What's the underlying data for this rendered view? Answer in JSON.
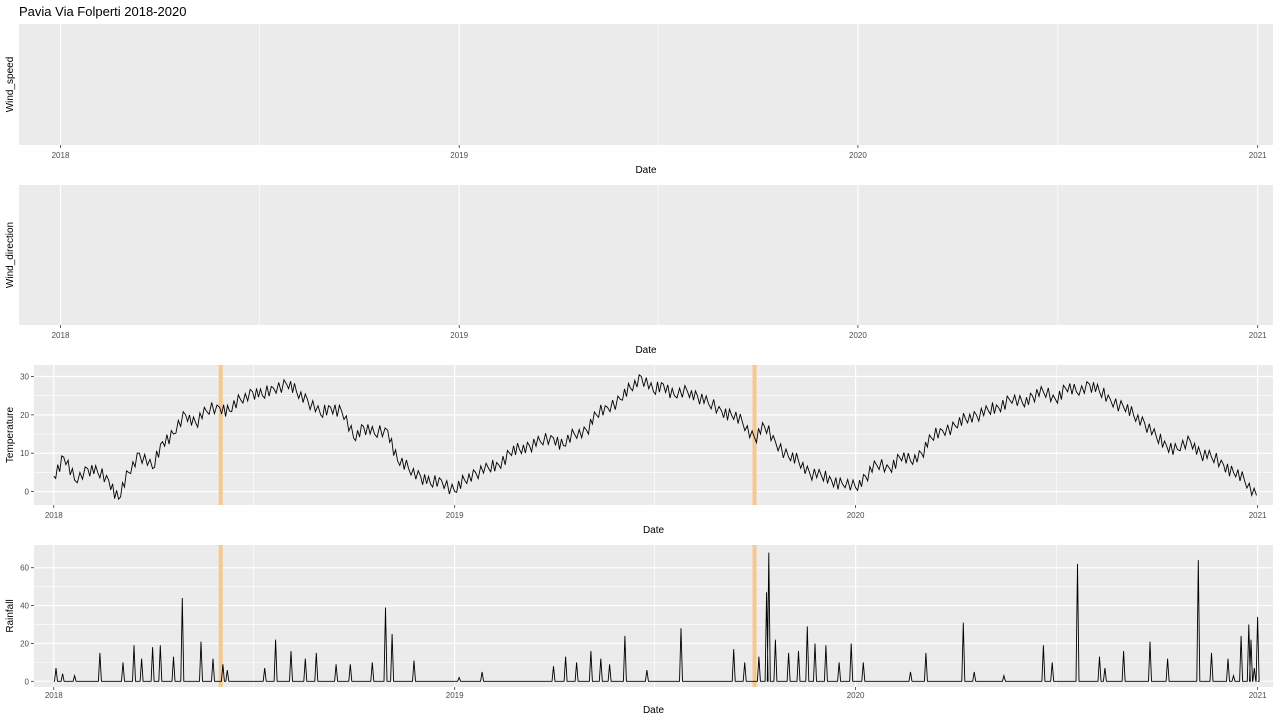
{
  "title": "Pavia Via Folperti 2018-2020",
  "colors": {
    "panel_bg": "#ebebeb",
    "grid": "#ffffff",
    "line": "#000000",
    "highlight": "#f5c891"
  },
  "chart_data": [
    {
      "type": "line",
      "ylabel": "Wind_speed",
      "xlabel": "Date",
      "x_ticks": [
        "2018",
        "2019",
        "2020",
        "2021"
      ],
      "x_range": [
        "2017-11-24",
        "2021-01-15"
      ],
      "y_ticks": [],
      "series": [],
      "grid": true
    },
    {
      "type": "line",
      "ylabel": "Wind_direction",
      "xlabel": "Date",
      "x_ticks": [
        "2018",
        "2019",
        "2020",
        "2021"
      ],
      "x_range": [
        "2017-11-24",
        "2021-01-15"
      ],
      "y_ticks": [],
      "series": [],
      "grid": true
    },
    {
      "type": "line",
      "ylabel": "Temperature",
      "xlabel": "Date",
      "x_ticks": [
        "2018",
        "2019",
        "2020",
        "2021"
      ],
      "x_range": [
        "2017-12-14",
        "2021-01-15"
      ],
      "y_ticks": [
        0,
        10,
        20,
        30
      ],
      "ylim": [
        -3.5,
        33
      ],
      "highlight_dates": [
        "2018-06-02",
        "2019-10-01"
      ],
      "series": [
        {
          "x": [
            "2018-01-01",
            "2018-01-10",
            "2018-01-20",
            "2018-02-01",
            "2018-02-10",
            "2018-02-20",
            "2018-03-01",
            "2018-03-10",
            "2018-03-20",
            "2018-04-01",
            "2018-04-10",
            "2018-04-20",
            "2018-05-01",
            "2018-05-10",
            "2018-05-20",
            "2018-06-01",
            "2018-06-10",
            "2018-06-20",
            "2018-07-01",
            "2018-07-10",
            "2018-07-20",
            "2018-08-01",
            "2018-08-10",
            "2018-08-20",
            "2018-09-01",
            "2018-09-10",
            "2018-09-20",
            "2018-10-01",
            "2018-10-10",
            "2018-10-20",
            "2018-11-01",
            "2018-11-10",
            "2018-11-20",
            "2018-12-01",
            "2018-12-10",
            "2018-12-20",
            "2019-01-01",
            "2019-01-10",
            "2019-01-20",
            "2019-02-01",
            "2019-02-10",
            "2019-02-20",
            "2019-03-01",
            "2019-03-10",
            "2019-03-20",
            "2019-04-01",
            "2019-04-10",
            "2019-04-20",
            "2019-05-01",
            "2019-05-10",
            "2019-05-20",
            "2019-06-01",
            "2019-06-10",
            "2019-06-20",
            "2019-07-01",
            "2019-07-10",
            "2019-07-20",
            "2019-08-01",
            "2019-08-10",
            "2019-08-20",
            "2019-09-01",
            "2019-09-10",
            "2019-09-20",
            "2019-10-01",
            "2019-10-10",
            "2019-10-20",
            "2019-11-01",
            "2019-11-10",
            "2019-11-20",
            "2019-12-01",
            "2019-12-10",
            "2019-12-20",
            "2020-01-01",
            "2020-01-10",
            "2020-01-20",
            "2020-02-01",
            "2020-02-10",
            "2020-02-20",
            "2020-03-01",
            "2020-03-10",
            "2020-03-20",
            "2020-04-01",
            "2020-04-10",
            "2020-04-20",
            "2020-05-01",
            "2020-05-10",
            "2020-05-20",
            "2020-06-01",
            "2020-06-10",
            "2020-06-20",
            "2020-07-01",
            "2020-07-10",
            "2020-07-20",
            "2020-08-01",
            "2020-08-10",
            "2020-08-20",
            "2020-09-01",
            "2020-09-10",
            "2020-09-20",
            "2020-10-01",
            "2020-10-10",
            "2020-10-20",
            "2020-11-01",
            "2020-11-10",
            "2020-11-20",
            "2020-12-01",
            "2020-12-10",
            "2020-12-20",
            "2020-12-31"
          ],
          "y": [
            4,
            9,
            3,
            6,
            5,
            3,
            -2,
            5,
            10,
            6,
            13,
            15,
            20,
            18,
            21,
            22,
            21,
            24,
            26,
            25,
            27,
            28,
            26,
            24,
            20,
            22,
            21,
            14,
            17,
            15,
            16,
            8,
            6,
            4,
            2,
            3,
            0,
            3,
            5,
            6,
            7,
            10,
            11,
            12,
            13,
            14,
            12,
            15,
            16,
            20,
            22,
            24,
            27,
            30,
            26,
            28,
            25,
            26,
            25,
            23,
            21,
            20,
            18,
            14,
            17,
            13,
            9,
            8,
            5,
            4,
            3,
            2,
            1,
            4,
            7,
            6,
            9,
            8,
            10,
            14,
            16,
            17,
            19,
            20,
            21,
            22,
            24,
            23,
            25,
            26,
            24,
            27,
            26,
            28,
            26,
            24,
            22,
            20,
            18,
            14,
            12,
            11,
            13,
            10,
            9,
            7,
            5,
            3,
            -1
          ]
        }
      ],
      "grid": true
    },
    {
      "type": "line",
      "ylabel": "Rainfall",
      "xlabel": "Date",
      "x_ticks": [
        "2018",
        "2019",
        "2020",
        "2021"
      ],
      "x_range": [
        "2017-12-14",
        "2021-01-15"
      ],
      "y_ticks": [
        0,
        20,
        40,
        60
      ],
      "ylim": [
        -3,
        72
      ],
      "highlight_dates": [
        "2018-06-02",
        "2019-10-01"
      ],
      "series": [
        {
          "peaks": [
            [
              "2018-01-03",
              7
            ],
            [
              "2018-01-09",
              4
            ],
            [
              "2018-01-20",
              3
            ],
            [
              "2018-02-12",
              15
            ],
            [
              "2018-03-05",
              10
            ],
            [
              "2018-03-15",
              19
            ],
            [
              "2018-03-22",
              12
            ],
            [
              "2018-04-01",
              18
            ],
            [
              "2018-04-08",
              19
            ],
            [
              "2018-04-20",
              13
            ],
            [
              "2018-04-28",
              44
            ],
            [
              "2018-05-15",
              21
            ],
            [
              "2018-05-26",
              12
            ],
            [
              "2018-06-04",
              9
            ],
            [
              "2018-06-08",
              6
            ],
            [
              "2018-07-12",
              7
            ],
            [
              "2018-07-22",
              22
            ],
            [
              "2018-08-05",
              16
            ],
            [
              "2018-08-18",
              12
            ],
            [
              "2018-08-28",
              15
            ],
            [
              "2018-09-15",
              9
            ],
            [
              "2018-09-28",
              9
            ],
            [
              "2018-10-18",
              10
            ],
            [
              "2018-10-30",
              39
            ],
            [
              "2018-11-05",
              25
            ],
            [
              "2018-11-25",
              11
            ],
            [
              "2019-01-05",
              2
            ],
            [
              "2019-01-26",
              5
            ],
            [
              "2019-04-01",
              8
            ],
            [
              "2019-04-12",
              13
            ],
            [
              "2019-04-22",
              10
            ],
            [
              "2019-05-05",
              16
            ],
            [
              "2019-05-14",
              12
            ],
            [
              "2019-05-22",
              9
            ],
            [
              "2019-06-05",
              24
            ],
            [
              "2019-06-25",
              6
            ],
            [
              "2019-07-26",
              28
            ],
            [
              "2019-09-12",
              17
            ],
            [
              "2019-09-22",
              10
            ],
            [
              "2019-10-05",
              13
            ],
            [
              "2019-10-12",
              47
            ],
            [
              "2019-10-14",
              68
            ],
            [
              "2019-10-20",
              22
            ],
            [
              "2019-11-01",
              15
            ],
            [
              "2019-11-10",
              16
            ],
            [
              "2019-11-18",
              29
            ],
            [
              "2019-11-25",
              20
            ],
            [
              "2019-12-05",
              19
            ],
            [
              "2019-12-17",
              10
            ],
            [
              "2019-12-28",
              20
            ],
            [
              "2020-01-08",
              10
            ],
            [
              "2020-02-20",
              5
            ],
            [
              "2020-03-05",
              15
            ],
            [
              "2020-04-08",
              31
            ],
            [
              "2020-04-18",
              5
            ],
            [
              "2020-05-15",
              3
            ],
            [
              "2020-06-20",
              19
            ],
            [
              "2020-06-28",
              10
            ],
            [
              "2020-07-21",
              62
            ],
            [
              "2020-08-10",
              13
            ],
            [
              "2020-08-15",
              7
            ],
            [
              "2020-09-01",
              16
            ],
            [
              "2020-09-25",
              21
            ],
            [
              "2020-10-11",
              12
            ],
            [
              "2020-11-08",
              64
            ],
            [
              "2020-11-20",
              15
            ],
            [
              "2020-12-05",
              12
            ],
            [
              "2020-12-17",
              24
            ],
            [
              "2020-12-29",
              7
            ],
            [
              "2020-12-10",
              3
            ],
            [
              "2020-12-24",
              30
            ],
            [
              "2020-12-26",
              22
            ],
            [
              "2021-01-01",
              34
            ]
          ]
        }
      ],
      "grid": true
    }
  ]
}
